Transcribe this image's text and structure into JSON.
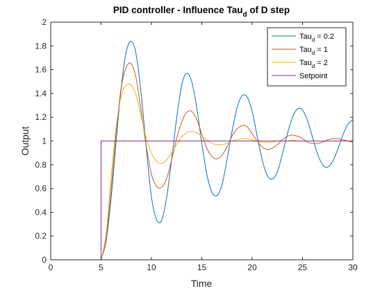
{
  "chart_data": {
    "type": "line",
    "title": {
      "main": "PID controller - Influence Tau",
      "subscript": "d",
      "suffix": " of D step"
    },
    "xlabel": "Time",
    "ylabel": "Output",
    "xlim": [
      0,
      30
    ],
    "ylim": [
      0,
      2
    ],
    "xticks": [
      0,
      5,
      10,
      15,
      20,
      25,
      30
    ],
    "yticks": [
      0,
      0.2,
      0.4,
      0.6,
      0.8,
      1,
      1.2,
      1.4,
      1.6,
      1.8,
      2
    ],
    "xtick_labels": [
      "0",
      "5",
      "10",
      "15",
      "20",
      "25",
      "30"
    ],
    "ytick_labels": [
      "0",
      "0.2",
      "0.4",
      "0.6",
      "0.8",
      "1",
      "1.2",
      "1.4",
      "1.6",
      "1.8",
      "2"
    ],
    "grid": false,
    "box": true,
    "legend_position": "top-right",
    "series": [
      {
        "legend": {
          "base": "Tau",
          "sub": "d",
          "rest": " = 0.2"
        },
        "color": "#0072BD",
        "x": [
          0,
          5,
          5.5,
          6,
          6.5,
          7,
          7.5,
          8,
          8.5,
          9,
          9.5,
          10,
          10.5,
          11,
          11.5,
          12,
          12.5,
          13,
          13.5,
          14,
          14.5,
          15,
          15.5,
          16,
          16.5,
          17,
          17.5,
          18,
          18.5,
          19,
          19.5,
          20,
          20.5,
          21,
          21.5,
          22,
          22.5,
          23,
          23.5,
          24,
          24.5,
          25,
          25.5,
          26,
          26.5,
          27,
          27.5,
          28,
          28.5,
          29,
          29.5,
          30
        ],
        "y": [
          0,
          0,
          0.16,
          0.52,
          1.0,
          1.45,
          1.75,
          1.84,
          1.72,
          1.38,
          0.93,
          0.53,
          0.34,
          0.33,
          0.52,
          0.84,
          1.19,
          1.47,
          1.57,
          1.5,
          1.28,
          0.98,
          0.72,
          0.57,
          0.54,
          0.63,
          0.84,
          1.08,
          1.28,
          1.38,
          1.37,
          1.25,
          1.04,
          0.84,
          0.71,
          0.68,
          0.74,
          0.89,
          1.06,
          1.2,
          1.27,
          1.26,
          1.17,
          1.03,
          0.89,
          0.8,
          0.78,
          0.83,
          0.93,
          1.05,
          1.14,
          1.18
        ]
      },
      {
        "legend": {
          "base": "Tau",
          "sub": "d",
          "rest": " = 1"
        },
        "color": "#D95319",
        "x": [
          0,
          5,
          5.5,
          6,
          6.5,
          7,
          7.5,
          8,
          8.5,
          9,
          9.5,
          10,
          10.5,
          11,
          11.5,
          12,
          12.5,
          13,
          13.5,
          14,
          14.5,
          15,
          15.5,
          16,
          16.5,
          17,
          17.5,
          18,
          18.5,
          19,
          19.5,
          20,
          20.5,
          21,
          21.5,
          22,
          22.5,
          23,
          23.5,
          24,
          24.5,
          25,
          25.5,
          26,
          26.5,
          27,
          27.5,
          28,
          28.5,
          29,
          29.5,
          30
        ],
        "y": [
          0,
          0,
          0.18,
          0.6,
          1.08,
          1.45,
          1.62,
          1.65,
          1.52,
          1.24,
          0.95,
          0.72,
          0.62,
          0.61,
          0.68,
          0.84,
          1.02,
          1.16,
          1.24,
          1.25,
          1.18,
          1.06,
          0.94,
          0.87,
          0.85,
          0.88,
          0.95,
          1.04,
          1.1,
          1.13,
          1.12,
          1.06,
          1.0,
          0.95,
          0.93,
          0.94,
          0.97,
          1.01,
          1.04,
          1.05,
          1.04,
          1.02,
          0.99,
          0.98,
          0.98,
          0.99,
          1.01,
          1.02,
          1.02,
          1.01,
          1.0,
          0.99
        ]
      },
      {
        "legend": {
          "base": "Tau",
          "sub": "d",
          "rest": " = 2"
        },
        "color": "#EDB120",
        "x": [
          0,
          5,
          5.5,
          6,
          6.5,
          7,
          7.5,
          8,
          8.5,
          9,
          9.5,
          10,
          10.5,
          11,
          11.5,
          12,
          12.5,
          13,
          13.5,
          14,
          14.5,
          15,
          15.5,
          16,
          16.5,
          17,
          17.5,
          18,
          18.5,
          19,
          19.5,
          20,
          20.5,
          21,
          21.5,
          22,
          22.5,
          23,
          23.5,
          24,
          24.5,
          25,
          25.5,
          26,
          26.5,
          27,
          27.5,
          28,
          28.5,
          29,
          29.5,
          30
        ],
        "y": [
          0,
          0,
          0.22,
          0.7,
          1.12,
          1.38,
          1.47,
          1.47,
          1.38,
          1.2,
          1.02,
          0.9,
          0.83,
          0.81,
          0.84,
          0.9,
          0.97,
          1.03,
          1.07,
          1.08,
          1.07,
          1.04,
          1.01,
          0.98,
          0.97,
          0.97,
          0.98,
          1.0,
          1.01,
          1.02,
          1.02,
          1.01,
          1.0,
          0.99,
          0.99,
          0.99,
          1.0,
          1.0,
          1.0,
          1.01,
          1.0,
          1.0,
          1.0,
          1.0,
          1.0,
          1.0,
          1.0,
          1.0,
          1.0,
          1.0,
          1.0,
          1.0
        ]
      },
      {
        "legend": {
          "base": "Setpoint",
          "sub": "",
          "rest": ""
        },
        "color": "#7E2F8E",
        "x": [
          0,
          5,
          5,
          30
        ],
        "y": [
          0,
          0,
          1,
          1
        ]
      }
    ]
  }
}
